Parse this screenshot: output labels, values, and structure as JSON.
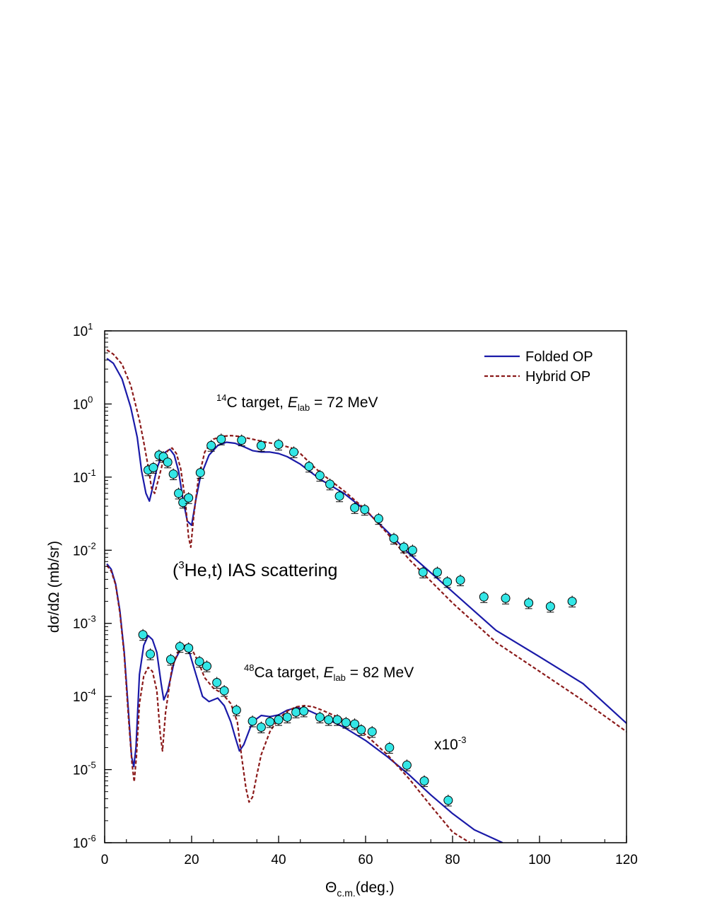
{
  "chart_data": {
    "type": "line",
    "xlim": [
      0,
      120
    ],
    "ylim": [
      1e-06,
      10
    ],
    "yscale": "log",
    "x_ticks": [
      "0",
      "20",
      "40",
      "60",
      "80",
      "100",
      "120"
    ],
    "y_tick_mantissa": "10",
    "y_tick_exponents": [
      "1",
      "0",
      "-1",
      "-2",
      "-3",
      "-4",
      "-5",
      "-6"
    ],
    "xlabel": {
      "main": "Θ",
      "sub": "c.m.",
      "rest": "(deg.)"
    },
    "ylabel": "dσ/dΩ (mb/sr)",
    "legend": {
      "position": "top-right",
      "entries": [
        "Folded OP",
        "Hybrid OP"
      ]
    },
    "colors": {
      "folded": "#1a1aa8",
      "hybrid": "#8b1a1a",
      "data_fill": "#33e6e6",
      "data_edge": "#000000"
    },
    "annotations": {
      "c14": {
        "pre_sup": "14",
        "pre": "C target, ",
        "italic": "E",
        "sub": "lab",
        "post": " = 72 MeV"
      },
      "ca48": {
        "pre_sup": "48",
        "pre": "Ca target, ",
        "italic": "E",
        "sub": "lab",
        "post": " = 82 MeV"
      },
      "reaction": {
        "open": "(",
        "sup": "3",
        "rest": "He,t) IAS scattering"
      },
      "scale": {
        "base": "x10",
        "sup": "-3"
      }
    },
    "series": [
      {
        "name": "Folded OP",
        "style": "solid",
        "color": "#1a1aa8",
        "x": [
          0.5,
          2,
          4,
          6,
          7.5,
          8.5,
          9.5,
          10.3,
          11,
          12,
          13,
          14,
          15,
          16,
          17,
          18,
          19,
          20,
          21,
          22,
          24,
          26,
          28,
          30,
          32,
          34,
          36,
          38,
          40,
          42,
          45,
          48,
          50,
          55,
          60,
          65,
          70,
          80,
          90,
          100,
          110,
          120
        ],
        "y": [
          4.2,
          3.6,
          2.2,
          0.9,
          0.35,
          0.12,
          0.06,
          0.047,
          0.07,
          0.13,
          0.19,
          0.22,
          0.24,
          0.2,
          0.12,
          0.05,
          0.025,
          0.022,
          0.05,
          0.1,
          0.2,
          0.27,
          0.3,
          0.29,
          0.26,
          0.23,
          0.22,
          0.22,
          0.21,
          0.19,
          0.15,
          0.11,
          0.09,
          0.06,
          0.035,
          0.018,
          0.009,
          0.0027,
          0.0008,
          0.00035,
          0.00015,
          4.3e-05
        ]
      },
      {
        "name": "Hybrid OP",
        "style": "dashed",
        "color": "#8b1a1a",
        "x": [
          0.5,
          2,
          4,
          6,
          8,
          9,
          10,
          10.8,
          11.5,
          12.5,
          13.5,
          14.5,
          15.5,
          16.5,
          17.5,
          18.5,
          19.3,
          19.8,
          20.5,
          21.5,
          23,
          25,
          27,
          29,
          31,
          33,
          35,
          37,
          40,
          43,
          45,
          48,
          50,
          55,
          60,
          65,
          70,
          80,
          90,
          100,
          110,
          120
        ],
        "y": [
          5.5,
          4.8,
          3.5,
          1.8,
          0.6,
          0.3,
          0.14,
          0.07,
          0.06,
          0.1,
          0.17,
          0.23,
          0.25,
          0.21,
          0.13,
          0.05,
          0.015,
          0.011,
          0.03,
          0.09,
          0.22,
          0.33,
          0.36,
          0.37,
          0.36,
          0.34,
          0.32,
          0.3,
          0.28,
          0.25,
          0.21,
          0.14,
          0.11,
          0.065,
          0.036,
          0.017,
          0.0075,
          0.0019,
          0.00055,
          0.00022,
          8.8e-05,
          3.3e-05
        ]
      },
      {
        "name": "Folded OP (48Ca, x10^-3)",
        "style": "solid",
        "color": "#1a1aa8",
        "x": [
          0.5,
          1.5,
          2.5,
          3.5,
          4.5,
          5.5,
          6.2,
          6.7,
          7.2,
          8,
          9,
          10,
          11,
          12,
          13,
          13.6,
          14.5,
          16,
          17.5,
          18.5,
          19.5,
          21,
          22.5,
          24,
          26,
          27.5,
          29,
          30,
          31,
          32,
          34,
          36,
          38,
          40,
          42,
          44,
          46,
          48,
          50,
          55,
          60,
          65,
          70,
          75,
          80,
          85,
          90,
          91.5
        ],
        "y": [
          0.0065,
          0.0055,
          0.0035,
          0.0015,
          0.0004,
          6e-05,
          1.5e-05,
          1.1e-05,
          2e-05,
          0.0002,
          0.0005,
          0.00068,
          0.0006,
          0.0004,
          0.00015,
          9e-05,
          0.00012,
          0.0003,
          0.00045,
          0.00049,
          0.0004,
          0.0002,
          0.0001,
          8.5e-05,
          9.5e-05,
          7.5e-05,
          4.5e-05,
          2.8e-05,
          1.8e-05,
          2.2e-05,
          4.5e-05,
          5.5e-05,
          5.3e-05,
          5.6e-05,
          6.5e-05,
          7e-05,
          6.8e-05,
          6e-05,
          5.3e-05,
          3.8e-05,
          2.5e-05,
          1.5e-05,
          8.5e-06,
          4.5e-06,
          2.5e-06,
          1.5e-06,
          1.1e-06,
          1e-06
        ]
      },
      {
        "name": "Hybrid OP (48Ca, x10^-3)",
        "style": "dashed",
        "color": "#8b1a1a",
        "x": [
          0.5,
          1.5,
          2.5,
          3.5,
          4.5,
          5.5,
          6.3,
          6.8,
          7.3,
          8,
          9,
          10,
          11,
          12,
          12.8,
          13.3,
          14,
          15.5,
          17,
          18.5,
          20,
          21.5,
          23,
          25,
          27,
          29,
          30.5,
          31.5,
          32.5,
          33.2,
          34,
          35,
          36,
          38,
          40,
          42,
          44,
          46,
          48,
          50,
          55,
          60,
          65,
          70,
          75,
          80,
          84
        ],
        "y": [
          0.0062,
          0.0052,
          0.0034,
          0.0014,
          0.00037,
          5e-05,
          1.2e-05,
          6.8e-06,
          1.5e-05,
          8e-05,
          0.00019,
          0.00025,
          0.00022,
          0.00012,
          3e-05,
          1.8e-05,
          6e-05,
          0.00025,
          0.00042,
          0.0005,
          0.00045,
          0.0003,
          0.00018,
          0.00013,
          0.00011,
          8e-05,
          4.5e-05,
          1.5e-05,
          5.5e-06,
          3.6e-06,
          4.2e-06,
          8.5e-06,
          1.6e-05,
          3.3e-05,
          5e-05,
          6.3e-05,
          7.2e-05,
          7.5e-05,
          7.2e-05,
          6.5e-05,
          4.8e-05,
          3e-05,
          1.6e-05,
          7.5e-06,
          3.2e-06,
          1.4e-06,
          1e-06
        ]
      }
    ],
    "data_points": [
      {
        "x": 10.0,
        "y": 0.125
      },
      {
        "x": 11.2,
        "y": 0.135
      },
      {
        "x": 12.5,
        "y": 0.2
      },
      {
        "x": 13.5,
        "y": 0.19
      },
      {
        "x": 14.5,
        "y": 0.16
      },
      {
        "x": 15.8,
        "y": 0.11
      },
      {
        "x": 17.0,
        "y": 0.06
      },
      {
        "x": 18.0,
        "y": 0.045
      },
      {
        "x": 19.3,
        "y": 0.052
      },
      {
        "x": 22.0,
        "y": 0.115
      },
      {
        "x": 24.5,
        "y": 0.27
      },
      {
        "x": 26.8,
        "y": 0.33
      },
      {
        "x": 31.5,
        "y": 0.32
      },
      {
        "x": 36.0,
        "y": 0.27
      },
      {
        "x": 40.0,
        "y": 0.28
      },
      {
        "x": 43.5,
        "y": 0.22
      },
      {
        "x": 47.0,
        "y": 0.14
      },
      {
        "x": 49.5,
        "y": 0.105
      },
      {
        "x": 51.8,
        "y": 0.08
      },
      {
        "x": 54.0,
        "y": 0.055
      },
      {
        "x": 57.5,
        "y": 0.038
      },
      {
        "x": 59.8,
        "y": 0.036
      },
      {
        "x": 63.0,
        "y": 0.027
      },
      {
        "x": 66.5,
        "y": 0.0145
      },
      {
        "x": 68.8,
        "y": 0.011
      },
      {
        "x": 70.8,
        "y": 0.01
      },
      {
        "x": 73.2,
        "y": 0.005
      },
      {
        "x": 76.5,
        "y": 0.005
      },
      {
        "x": 78.8,
        "y": 0.0037
      },
      {
        "x": 81.8,
        "y": 0.0039
      },
      {
        "x": 87.2,
        "y": 0.0023
      },
      {
        "x": 92.2,
        "y": 0.0022
      },
      {
        "x": 97.5,
        "y": 0.0019
      },
      {
        "x": 102.5,
        "y": 0.0017
      },
      {
        "x": 107.5,
        "y": 0.002
      },
      {
        "x": 8.8,
        "y": 0.0007
      },
      {
        "x": 10.5,
        "y": 0.00038
      },
      {
        "x": 15.2,
        "y": 0.00032
      },
      {
        "x": 17.3,
        "y": 0.00048
      },
      {
        "x": 19.3,
        "y": 0.00046
      },
      {
        "x": 21.8,
        "y": 0.0003
      },
      {
        "x": 23.5,
        "y": 0.00026
      },
      {
        "x": 25.8,
        "y": 0.000155
      },
      {
        "x": 27.5,
        "y": 0.00012
      },
      {
        "x": 30.3,
        "y": 6.5e-05
      },
      {
        "x": 34.0,
        "y": 4.6e-05
      },
      {
        "x": 36.0,
        "y": 3.8e-05
      },
      {
        "x": 38.0,
        "y": 4.5e-05
      },
      {
        "x": 40.0,
        "y": 4.8e-05
      },
      {
        "x": 42.0,
        "y": 5.2e-05
      },
      {
        "x": 44.0,
        "y": 6.1e-05
      },
      {
        "x": 45.8,
        "y": 6.3e-05
      },
      {
        "x": 49.5,
        "y": 5.2e-05
      },
      {
        "x": 51.5,
        "y": 4.8e-05
      },
      {
        "x": 53.5,
        "y": 4.8e-05
      },
      {
        "x": 55.5,
        "y": 4.4e-05
      },
      {
        "x": 57.5,
        "y": 4.2e-05
      },
      {
        "x": 59.0,
        "y": 3.5e-05
      },
      {
        "x": 61.5,
        "y": 3.3e-05
      },
      {
        "x": 65.5,
        "y": 2e-05
      },
      {
        "x": 69.5,
        "y": 1.15e-05
      },
      {
        "x": 73.5,
        "y": 7e-06
      },
      {
        "x": 79.0,
        "y": 3.8e-06
      }
    ]
  }
}
